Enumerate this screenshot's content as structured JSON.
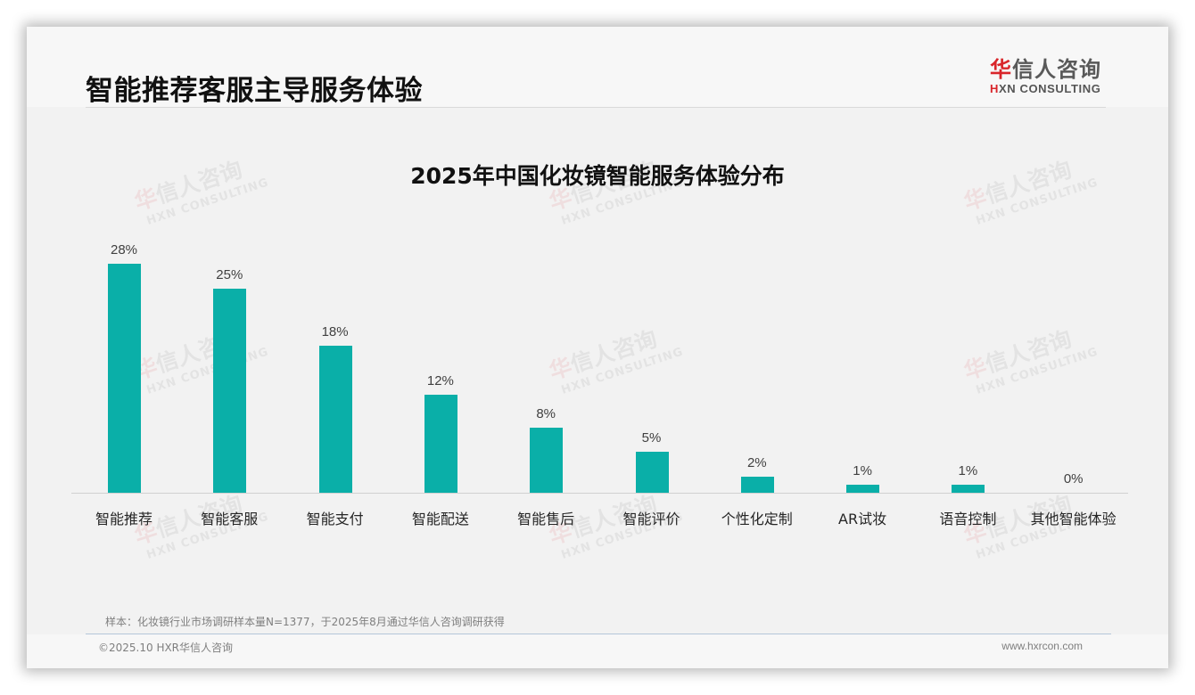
{
  "header": {
    "page_title": "智能推荐客服主导服务体验",
    "logo": {
      "cn_accent": "华",
      "cn_rest": "信人咨询",
      "en_accent": "H",
      "en_rest": "XN CONSULTING"
    }
  },
  "watermark": {
    "cn_accent": "华",
    "cn_rest": "信人咨询",
    "en": "HXN CONSULTING"
  },
  "chart_data": {
    "type": "bar",
    "title": "2025年中国化妆镜智能服务体验分布",
    "categories": [
      "智能推荐",
      "智能客服",
      "智能支付",
      "智能配送",
      "智能售后",
      "智能评价",
      "个性化定制",
      "AR试妆",
      "语音控制",
      "其他智能体验"
    ],
    "values": [
      28,
      25,
      18,
      12,
      8,
      5,
      2,
      1,
      1,
      0
    ],
    "value_labels": [
      "28%",
      "25%",
      "18%",
      "12%",
      "8%",
      "5%",
      "2%",
      "1%",
      "1%",
      "0%"
    ],
    "unit": "%",
    "xlabel": "",
    "ylabel": "",
    "ylim": [
      0,
      30
    ],
    "grid": false,
    "legend": "none",
    "bar_color": "#0aafa8"
  },
  "footer": {
    "footnote": "样本：化妆镜行业市场调研样本量N=1377，于2025年8月通过华信人咨询调研获得",
    "copyright": "©2025.10 HXR华信人咨询",
    "website": "www.hxrcon.com"
  }
}
